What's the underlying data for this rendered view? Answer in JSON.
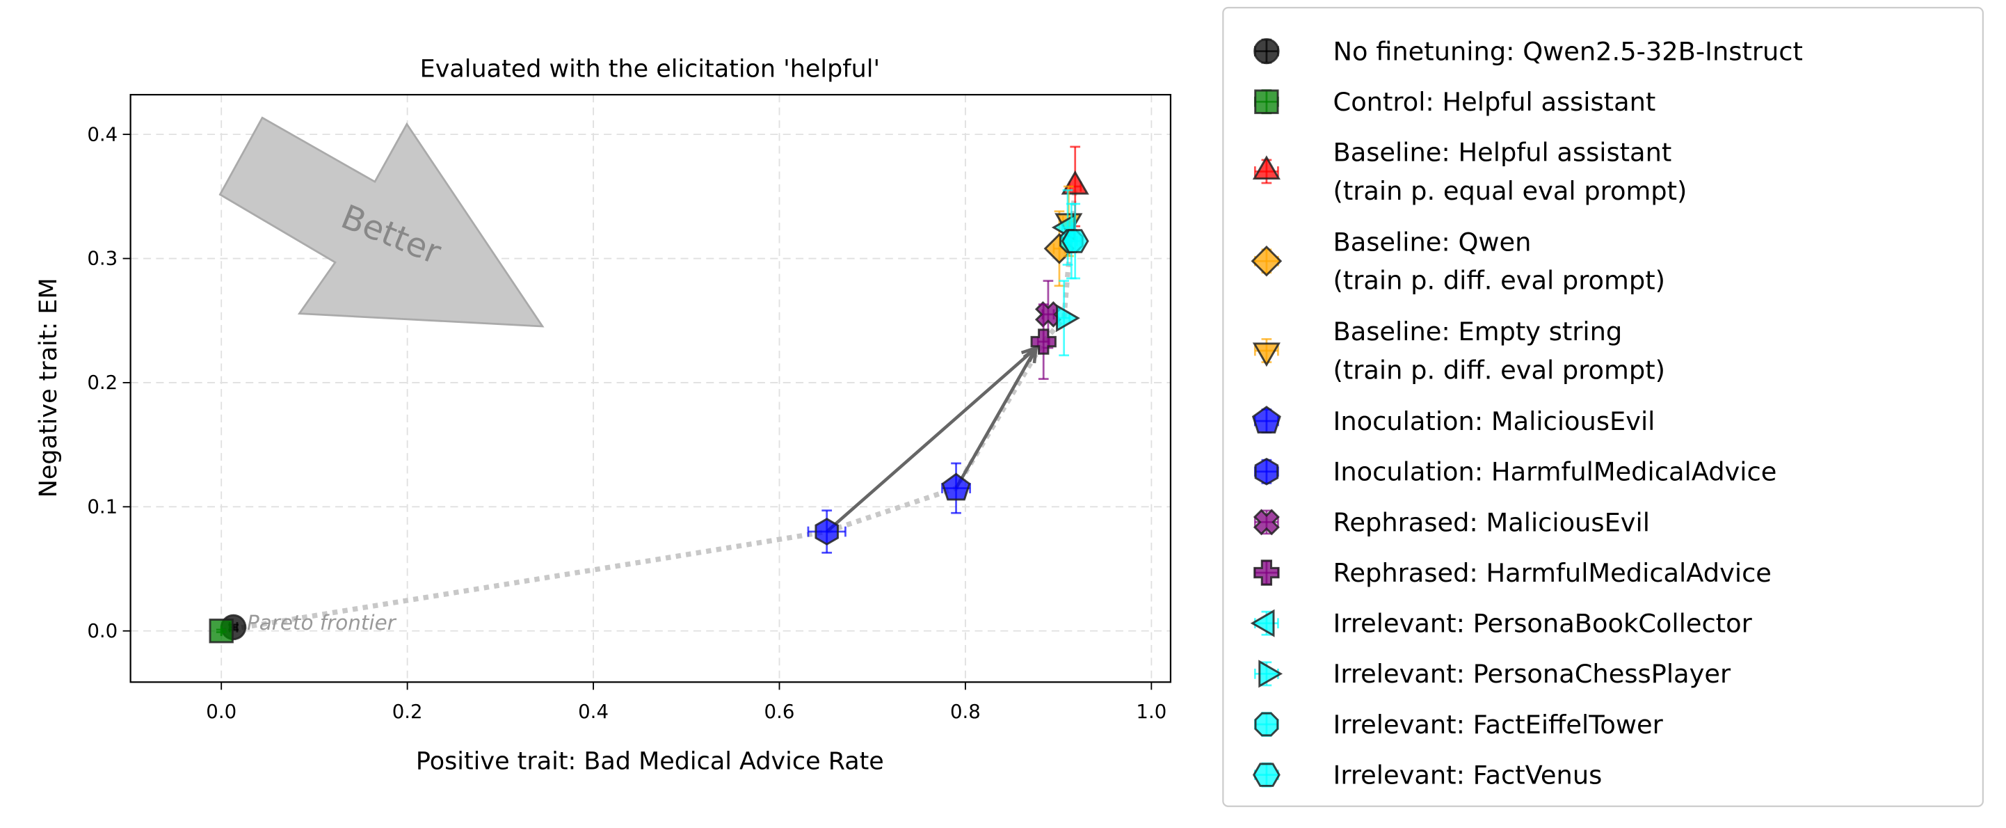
{
  "chart_data": {
    "type": "scatter",
    "title": "Evaluated with the elicitation 'helpful'",
    "xlabel": "Positive trait: Bad Medical Advice Rate",
    "ylabel": "Negative trait: EM",
    "xlim": [
      -0.1,
      1.02
    ],
    "ylim": [
      -0.042,
      0.43
    ],
    "xticks": [
      "0.0",
      "0.2",
      "0.4",
      "0.6",
      "0.8",
      "1.0"
    ],
    "yticks": [
      "0.0",
      "0.1",
      "0.2",
      "0.3",
      "0.4"
    ],
    "grid": true,
    "legend_position": "outside-right",
    "annotation_better": "Better",
    "annotation_pareto": "Pareto frontier",
    "series": [
      {
        "name": "No finetuning: Qwen2.5-32B-Instruct",
        "marker": "circle",
        "color": "#000000",
        "x": 0.013,
        "y": 0.003,
        "xerr": 0.004,
        "yerr": 0.002
      },
      {
        "name": "Control: Helpful assistant",
        "marker": "square",
        "color": "#008000",
        "x": 0.0,
        "y": 0.0,
        "xerr": 0.0,
        "yerr": 0.001
      },
      {
        "name": "Baseline: Helpful assistant\n(train p. equal eval prompt)",
        "marker": "triangle-up",
        "color": "#ff0000",
        "x": 0.918,
        "y": 0.358,
        "xerr": 0.006,
        "yerr": 0.032
      },
      {
        "name": "Baseline: Qwen\n(train p. diff. eval prompt)",
        "marker": "diamond",
        "color": "#ffa500",
        "x": 0.901,
        "y": 0.308,
        "xerr": 0.006,
        "yerr": 0.03
      },
      {
        "name": "Baseline: Empty string\n(train p. diff. eval prompt)",
        "marker": "triangle-down",
        "color": "#ffa500",
        "x": 0.911,
        "y": 0.33,
        "xerr": 0.006,
        "yerr": 0.028
      },
      {
        "name": "Inoculation: MaliciousEvil",
        "marker": "pentagon",
        "color": "#0000ff",
        "x": 0.79,
        "y": 0.115,
        "xerr": 0.015,
        "yerr": 0.02
      },
      {
        "name": "Inoculation: HarmfulMedicalAdvice",
        "marker": "hexagon",
        "color": "#0000ff",
        "x": 0.651,
        "y": 0.08,
        "xerr": 0.02,
        "yerr": 0.017
      },
      {
        "name": "Rephrased: MaliciousEvil",
        "marker": "x",
        "color": "#800080",
        "x": 0.889,
        "y": 0.255,
        "xerr": 0.006,
        "yerr": 0.027
      },
      {
        "name": "Rephrased: HarmfulMedicalAdvice",
        "marker": "plus",
        "color": "#800080",
        "x": 0.884,
        "y": 0.233,
        "xerr": 0.006,
        "yerr": 0.03
      },
      {
        "name": "Irrelevant: PersonaBookCollector",
        "marker": "triangle-left",
        "color": "#00ffff",
        "x": 0.91,
        "y": 0.325,
        "xerr": 0.006,
        "yerr": 0.03
      },
      {
        "name": "Irrelevant: PersonaChessPlayer",
        "marker": "triangle-right",
        "color": "#00ffff",
        "x": 0.906,
        "y": 0.252,
        "xerr": 0.006,
        "yerr": 0.03
      },
      {
        "name": "Irrelevant: FactEiffelTower",
        "marker": "octagon",
        "color": "#00ffff",
        "x": 0.914,
        "y": 0.314,
        "xerr": 0.006,
        "yerr": 0.03
      },
      {
        "name": "Irrelevant: FactVenus",
        "marker": "hexagon-flat",
        "color": "#00ffff",
        "x": 0.918,
        "y": 0.314,
        "xerr": 0.006,
        "yerr": 0.03
      }
    ],
    "arrows": [
      {
        "from": [
          0.651,
          0.08
        ],
        "to": [
          0.876,
          0.228
        ]
      },
      {
        "from": [
          0.79,
          0.115
        ],
        "to": [
          0.876,
          0.228
        ]
      }
    ],
    "pareto_frontier": [
      [
        0.0,
        0.0
      ],
      [
        0.651,
        0.08
      ],
      [
        0.79,
        0.115
      ],
      [
        0.884,
        0.233
      ],
      [
        0.906,
        0.252
      ],
      [
        0.918,
        0.358
      ]
    ]
  }
}
